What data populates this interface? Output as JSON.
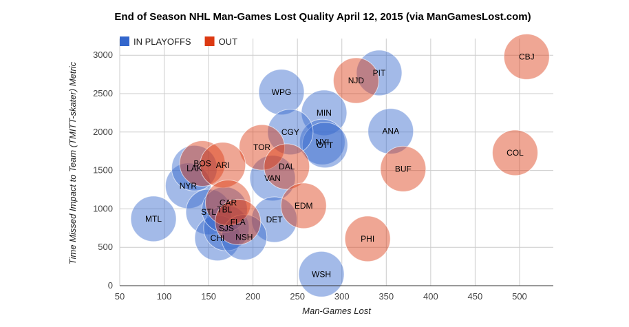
{
  "chart_data": {
    "type": "scatter",
    "title": "End of Season NHL Man-Games Lost Quality April 12, 2015 (via ManGamesLost.com)",
    "xlabel": "Man-Games Lost",
    "ylabel": "Time Missed Impact to Team (TMITT-skater) Metric",
    "xlim": [
      50,
      540
    ],
    "ylim": [
      0,
      3150
    ],
    "xticks": [
      50,
      100,
      150,
      200,
      250,
      300,
      350,
      400,
      450,
      500
    ],
    "yticks": [
      0,
      500,
      1000,
      1500,
      2000,
      2500,
      3000
    ],
    "grid": true,
    "legend_position": "top-left",
    "series": [
      {
        "name": "IN PLAYOFFS",
        "color": "#3366cc",
        "points": [
          {
            "label": "WSH",
            "x": 277,
            "y": 150
          },
          {
            "label": "MTL",
            "x": 88,
            "y": 870
          },
          {
            "label": "NYR",
            "x": 127,
            "y": 1300
          },
          {
            "label": "LAK",
            "x": 134,
            "y": 1530
          },
          {
            "label": "STL",
            "x": 150,
            "y": 960
          },
          {
            "label": "CHI",
            "x": 160,
            "y": 620
          },
          {
            "label": "SJS",
            "x": 170,
            "y": 750
          },
          {
            "label": "TBL",
            "x": 168,
            "y": 990
          },
          {
            "label": "ANA",
            "x": 355,
            "y": 2010
          },
          {
            "label": "PIT",
            "x": 342,
            "y": 2770
          },
          {
            "label": "MIN",
            "x": 280,
            "y": 2250
          },
          {
            "label": "NYI",
            "x": 278,
            "y": 1870
          },
          {
            "label": "OTT",
            "x": 281,
            "y": 1830
          },
          {
            "label": "WPG",
            "x": 232,
            "y": 2520
          },
          {
            "label": "CGY",
            "x": 242,
            "y": 2000
          },
          {
            "label": "VAN",
            "x": 222,
            "y": 1400
          },
          {
            "label": "DET",
            "x": 224,
            "y": 860
          },
          {
            "label": "NSH",
            "x": 190,
            "y": 630
          }
        ]
      },
      {
        "name": "OUT",
        "color": "#dc3912",
        "points": [
          {
            "label": "CBJ",
            "x": 508,
            "y": 2980
          },
          {
            "label": "COL",
            "x": 495,
            "y": 1730
          },
          {
            "label": "BUF",
            "x": 369,
            "y": 1520
          },
          {
            "label": "PHI",
            "x": 329,
            "y": 610
          },
          {
            "label": "NJD",
            "x": 316,
            "y": 2670
          },
          {
            "label": "TOR",
            "x": 210,
            "y": 1800
          },
          {
            "label": "DAL",
            "x": 238,
            "y": 1550
          },
          {
            "label": "EDM",
            "x": 257,
            "y": 1040
          },
          {
            "label": "BOS",
            "x": 143,
            "y": 1590
          },
          {
            "label": "ARI",
            "x": 166,
            "y": 1570
          },
          {
            "label": "CAR",
            "x": 172,
            "y": 1080
          },
          {
            "label": "FLA",
            "x": 183,
            "y": 830
          }
        ]
      }
    ]
  }
}
